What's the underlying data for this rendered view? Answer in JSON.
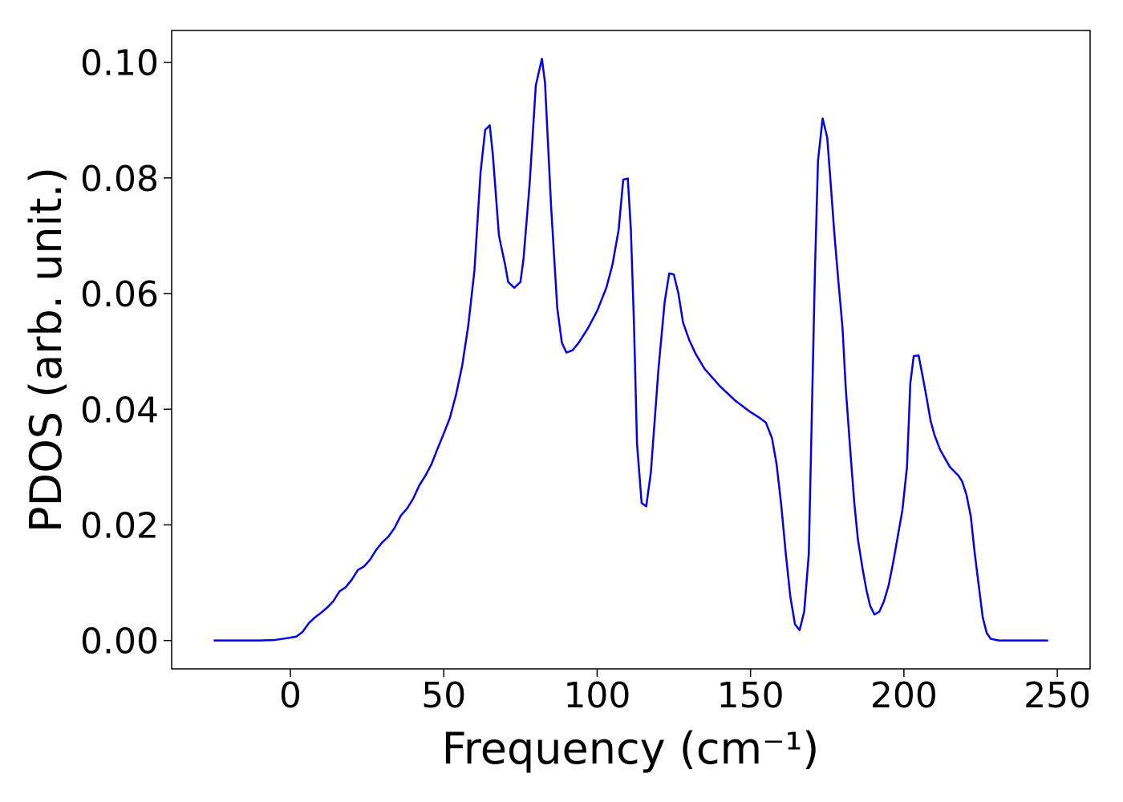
{
  "chart_data": {
    "type": "line",
    "x_label": "Frequency (cm⁻¹)",
    "y_label": "PDOS (arb. unit.)",
    "xlim": [
      -38.7,
      260.7
    ],
    "ylim": [
      -0.0049,
      0.1055
    ],
    "xticks": [
      0,
      50,
      100,
      150,
      200,
      250
    ],
    "yticks": [
      {
        "value": 0,
        "label": "0.00"
      },
      {
        "value": 0.02,
        "label": "0.02"
      },
      {
        "value": 0.04,
        "label": "0.04"
      },
      {
        "value": 0.06,
        "label": "0.06"
      },
      {
        "value": 0.08,
        "label": "0.08"
      },
      {
        "value": 0.1,
        "label": "0.10"
      }
    ],
    "grid": false,
    "series": [
      {
        "color": "#0000ee",
        "x": [
          -25,
          -10,
          -5,
          0,
          2,
          4,
          6,
          8,
          10,
          12,
          14,
          16,
          18,
          20,
          22,
          24,
          26,
          28,
          30,
          32,
          34,
          36,
          38,
          40,
          42,
          44,
          46,
          48,
          50,
          52,
          54,
          56,
          58,
          60,
          62,
          63.5,
          65,
          66,
          68,
          70,
          71,
          73,
          75,
          76,
          78,
          80,
          82,
          83,
          85,
          87,
          88.5,
          90,
          92,
          94,
          97,
          100,
          103,
          105,
          107,
          108.5,
          110,
          111,
          112,
          113,
          114.5,
          116,
          117.5,
          120,
          122,
          123.5,
          125,
          126.5,
          128,
          130,
          132,
          135,
          140,
          145,
          150,
          153,
          155,
          157,
          158.5,
          160,
          161.5,
          163,
          164.5,
          166,
          167.5,
          169,
          171,
          172,
          173.5,
          175,
          176,
          177.3,
          178.5,
          180,
          181,
          182.5,
          183.8,
          185,
          186.5,
          187.8,
          189,
          190.4,
          192,
          193.5,
          195,
          196.5,
          198,
          199.5,
          201,
          202.1,
          203.2,
          204.8,
          206,
          207.4,
          208.7,
          210,
          211.8,
          215,
          217.8,
          219,
          220.4,
          221.8,
          223,
          224.4,
          225.7,
          227,
          228.3,
          231,
          247
        ],
        "values": [
          0,
          0,
          0.0001,
          0.0005,
          0.0007,
          0.0015,
          0.003,
          0.004,
          0.0048,
          0.0057,
          0.0068,
          0.0085,
          0.0092,
          0.0105,
          0.0122,
          0.0128,
          0.014,
          0.0157,
          0.017,
          0.018,
          0.0195,
          0.0216,
          0.0228,
          0.0245,
          0.0268,
          0.0285,
          0.0305,
          0.0332,
          0.0358,
          0.0385,
          0.0425,
          0.0475,
          0.0545,
          0.064,
          0.081,
          0.0883,
          0.0891,
          0.084,
          0.07,
          0.065,
          0.062,
          0.061,
          0.062,
          0.066,
          0.079,
          0.096,
          0.1006,
          0.0965,
          0.075,
          0.0575,
          0.0515,
          0.0498,
          0.0502,
          0.0515,
          0.054,
          0.057,
          0.061,
          0.065,
          0.071,
          0.0797,
          0.0799,
          0.071,
          0.055,
          0.034,
          0.0238,
          0.0232,
          0.029,
          0.047,
          0.0585,
          0.0635,
          0.0633,
          0.06,
          0.055,
          0.052,
          0.0497,
          0.047,
          0.044,
          0.0415,
          0.0395,
          0.0385,
          0.0377,
          0.035,
          0.0305,
          0.0235,
          0.015,
          0.0075,
          0.0028,
          0.0018,
          0.005,
          0.015,
          0.064,
          0.083,
          0.0903,
          0.087,
          0.08,
          0.0706,
          0.063,
          0.054,
          0.044,
          0.033,
          0.024,
          0.0175,
          0.0125,
          0.0087,
          0.006,
          0.0045,
          0.005,
          0.0068,
          0.0095,
          0.0135,
          0.018,
          0.0225,
          0.03,
          0.0445,
          0.0492,
          0.0493,
          0.046,
          0.042,
          0.038,
          0.0355,
          0.033,
          0.03,
          0.0285,
          0.0275,
          0.0252,
          0.0215,
          0.0155,
          0.0095,
          0.004,
          0.0013,
          0.0003,
          0,
          0
        ]
      }
    ]
  }
}
